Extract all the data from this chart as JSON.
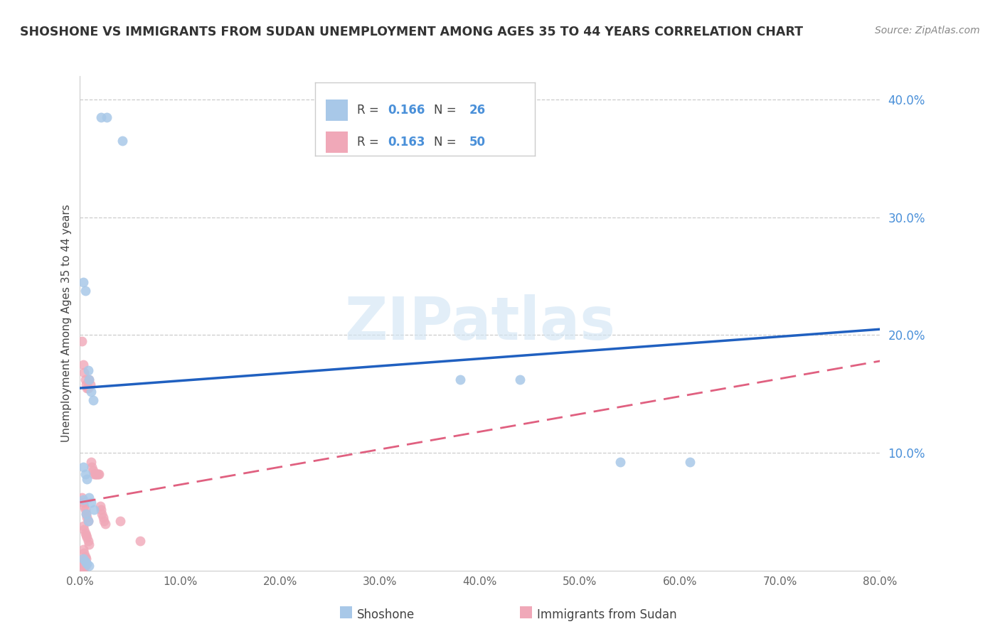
{
  "title": "SHOSHONE VS IMMIGRANTS FROM SUDAN UNEMPLOYMENT AMONG AGES 35 TO 44 YEARS CORRELATION CHART",
  "source": "Source: ZipAtlas.com",
  "ylabel": "Unemployment Among Ages 35 to 44 years",
  "xlim": [
    0,
    0.8
  ],
  "ylim": [
    0,
    0.42
  ],
  "yticks_right": [
    0.1,
    0.2,
    0.3,
    0.4
  ],
  "ytick_labels_right": [
    "10.0%",
    "20.0%",
    "30.0%",
    "40.0%"
  ],
  "xticks": [
    0.0,
    0.1,
    0.2,
    0.3,
    0.4,
    0.5,
    0.6,
    0.7,
    0.8
  ],
  "xtick_labels": [
    "0.0%",
    "10.0%",
    "20.0%",
    "30.0%",
    "40.0%",
    "50.0%",
    "60.0%",
    "70.0%",
    "80.0%"
  ],
  "shoshone_x": [
    0.021,
    0.027,
    0.042,
    0.003,
    0.005,
    0.008,
    0.009,
    0.011,
    0.013,
    0.003,
    0.005,
    0.007,
    0.009,
    0.011,
    0.014,
    0.003,
    0.006,
    0.008,
    0.38,
    0.44,
    0.54,
    0.61,
    0.003,
    0.005,
    0.007,
    0.009
  ],
  "shoshone_y": [
    0.385,
    0.385,
    0.365,
    0.245,
    0.238,
    0.17,
    0.162,
    0.152,
    0.145,
    0.088,
    0.082,
    0.078,
    0.062,
    0.058,
    0.052,
    0.06,
    0.048,
    0.042,
    0.162,
    0.162,
    0.092,
    0.092,
    0.01,
    0.008,
    0.006,
    0.004
  ],
  "sudan_x": [
    0.002,
    0.003,
    0.004,
    0.005,
    0.006,
    0.007,
    0.008,
    0.009,
    0.01,
    0.011,
    0.012,
    0.013,
    0.014,
    0.015,
    0.016,
    0.017,
    0.018,
    0.019,
    0.02,
    0.021,
    0.022,
    0.023,
    0.024,
    0.025,
    0.003,
    0.004,
    0.005,
    0.006,
    0.007,
    0.008,
    0.009,
    0.003,
    0.004,
    0.005,
    0.006,
    0.002,
    0.003,
    0.004,
    0.005,
    0.002,
    0.003,
    0.04,
    0.06,
    0.002,
    0.003,
    0.004,
    0.005,
    0.006,
    0.007,
    0.008
  ],
  "sudan_y": [
    0.195,
    0.175,
    0.168,
    0.162,
    0.158,
    0.155,
    0.155,
    0.162,
    0.158,
    0.092,
    0.088,
    0.085,
    0.082,
    0.082,
    0.082,
    0.082,
    0.082,
    0.082,
    0.055,
    0.052,
    0.048,
    0.045,
    0.042,
    0.04,
    0.038,
    0.035,
    0.032,
    0.03,
    0.028,
    0.025,
    0.022,
    0.018,
    0.015,
    0.012,
    0.01,
    0.008,
    0.006,
    0.005,
    0.004,
    0.002,
    0.001,
    0.042,
    0.025,
    0.062,
    0.058,
    0.055,
    0.052,
    0.048,
    0.045,
    0.042
  ],
  "shoshone_color": "#a8c8e8",
  "sudan_color": "#f0a8b8",
  "shoshone_line_color": "#2060c0",
  "sudan_line_color": "#e06080",
  "shoshone_R": 0.166,
  "shoshone_N": 26,
  "sudan_R": 0.163,
  "sudan_N": 50,
  "shoshone_line_x": [
    0.0,
    0.8
  ],
  "shoshone_line_y": [
    0.155,
    0.205
  ],
  "sudan_line_x": [
    0.0,
    0.8
  ],
  "sudan_line_y": [
    0.058,
    0.178
  ],
  "watermark": "ZIPatlas",
  "background_color": "#ffffff",
  "grid_color": "#cccccc"
}
